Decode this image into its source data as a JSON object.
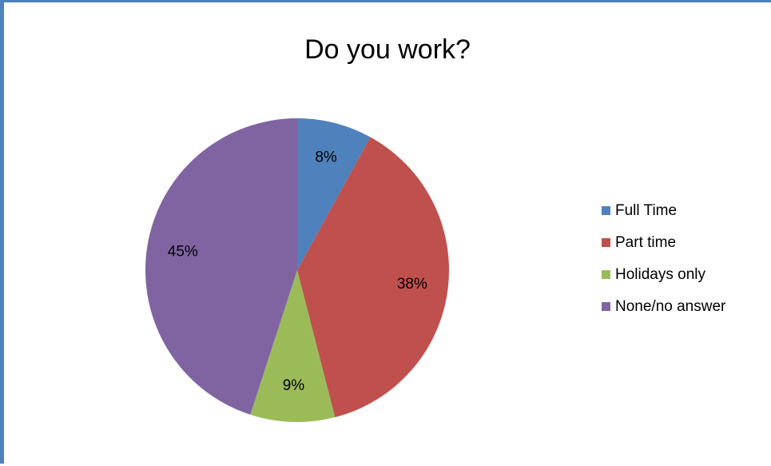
{
  "chart_data": {
    "type": "pie",
    "title": "Do you work?",
    "slices": [
      {
        "label": "Full Time",
        "value": 8,
        "display": "8%",
        "color": "#4f81bd"
      },
      {
        "label": "Part time",
        "value": 38,
        "display": "38%",
        "color": "#c0504d"
      },
      {
        "label": "Holidays only",
        "value": 9,
        "display": "9%",
        "color": "#9bbb59"
      },
      {
        "label": "None/no answer",
        "value": 45,
        "display": "45%",
        "color": "#8064a2"
      }
    ],
    "legend_position": "right",
    "start_angle": "12 o'clock, clockwise"
  },
  "frame": {
    "border_color": "#4f81bd"
  }
}
